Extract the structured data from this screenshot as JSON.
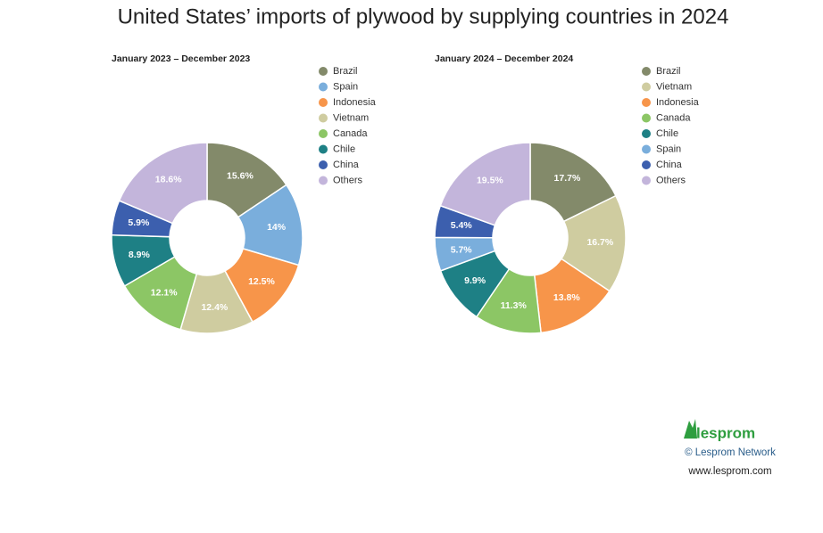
{
  "title": "United States’ imports of plywood by supplying countries in 2024",
  "chart_data": [
    {
      "type": "pie",
      "donut": true,
      "title": "January 2023 – December 2023",
      "categories": [
        "Brazil",
        "Spain",
        "Indonesia",
        "Vietnam",
        "Canada",
        "Chile",
        "China",
        "Others"
      ],
      "values": [
        15.6,
        14,
        12.5,
        12.4,
        12.1,
        8.9,
        5.9,
        18.6
      ],
      "value_labels": [
        "15.6%",
        "14%",
        "12.5%",
        "12.4%",
        "12.1%",
        "8.9%",
        "5.9%",
        "18.6%"
      ],
      "colors": [
        "#838a6a",
        "#7aaedc",
        "#f7954a",
        "#cfcca0",
        "#8cc665",
        "#1e8085",
        "#3c5fae",
        "#c3b5db"
      ],
      "legend": "right"
    },
    {
      "type": "pie",
      "donut": true,
      "title": "January 2024 – December 2024",
      "categories": [
        "Brazil",
        "Vietnam",
        "Indonesia",
        "Canada",
        "Chile",
        "Spain",
        "China",
        "Others"
      ],
      "values": [
        17.7,
        16.7,
        13.8,
        11.3,
        9.9,
        5.7,
        5.4,
        19.5
      ],
      "value_labels": [
        "17.7%",
        "16.7%",
        "13.8%",
        "11.3%",
        "9.9%",
        "5.7%",
        "5.4%",
        "19.5%"
      ],
      "colors": [
        "#838a6a",
        "#cfcca0",
        "#f7954a",
        "#8cc665",
        "#1e8085",
        "#7aaedc",
        "#3c5fae",
        "#c3b5db"
      ],
      "legend": "right"
    }
  ],
  "footer": {
    "logo": "lesprom",
    "copyright": "© Lesprom Network",
    "url": "www.lesprom.com"
  }
}
